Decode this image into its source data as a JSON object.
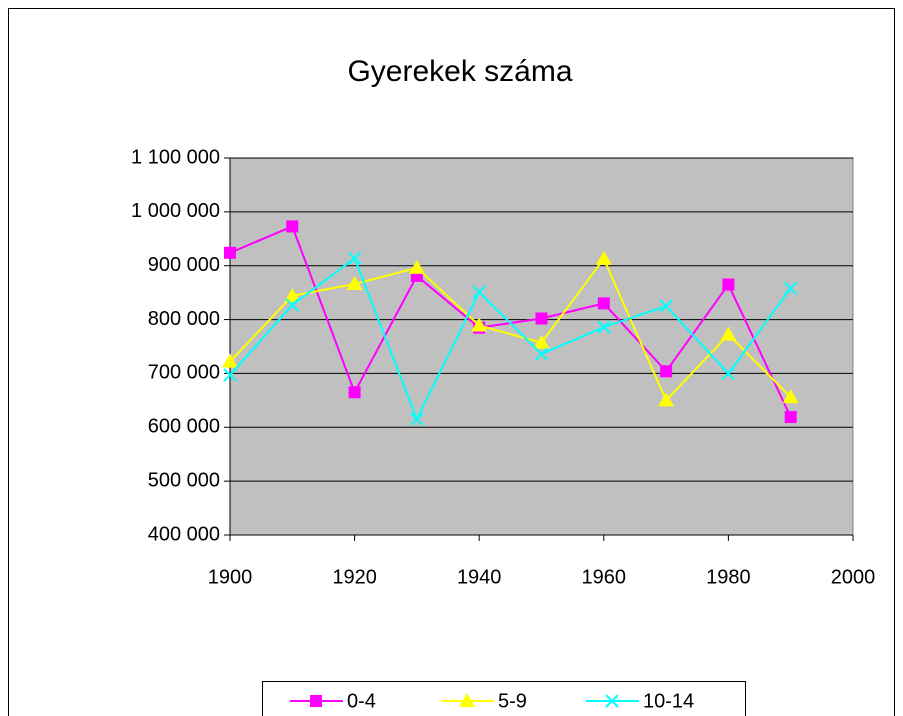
{
  "chart_data": {
    "type": "line",
    "title": "Gyerekek száma",
    "x": [
      1900,
      1910,
      1920,
      1930,
      1940,
      1950,
      1960,
      1970,
      1980,
      1990
    ],
    "series": [
      {
        "name": "0-4",
        "color": "#ff00ff",
        "marker": "square",
        "values": [
          924000,
          973000,
          665000,
          881000,
          785000,
          802000,
          830000,
          704000,
          865000,
          619000
        ]
      },
      {
        "name": "5-9",
        "color": "#ffff00",
        "marker": "triangle",
        "values": [
          722000,
          844000,
          866000,
          896000,
          789000,
          757000,
          913000,
          650000,
          772000,
          656000
        ]
      },
      {
        "name": "10-14",
        "color": "#00ffff",
        "marker": "x",
        "values": [
          697000,
          827000,
          914000,
          615000,
          851000,
          736000,
          786000,
          825000,
          700000,
          858000
        ]
      }
    ],
    "xlim": [
      1900,
      2000
    ],
    "xticks": [
      1900,
      1920,
      1940,
      1960,
      1980,
      2000
    ],
    "ylim": [
      400000,
      1100000
    ],
    "yticks": [
      {
        "value": 400000,
        "label": "400 000"
      },
      {
        "value": 500000,
        "label": "500 000"
      },
      {
        "value": 600000,
        "label": "600 000"
      },
      {
        "value": 700000,
        "label": "700 000"
      },
      {
        "value": 800000,
        "label": "800 000"
      },
      {
        "value": 900000,
        "label": "900 000"
      },
      {
        "value": 1000000,
        "label": "1 000 000"
      },
      {
        "value": 1100000,
        "label": "1 100 000"
      }
    ],
    "grid": true,
    "legend": "bottom",
    "plot_background": "#c0c0c0"
  }
}
